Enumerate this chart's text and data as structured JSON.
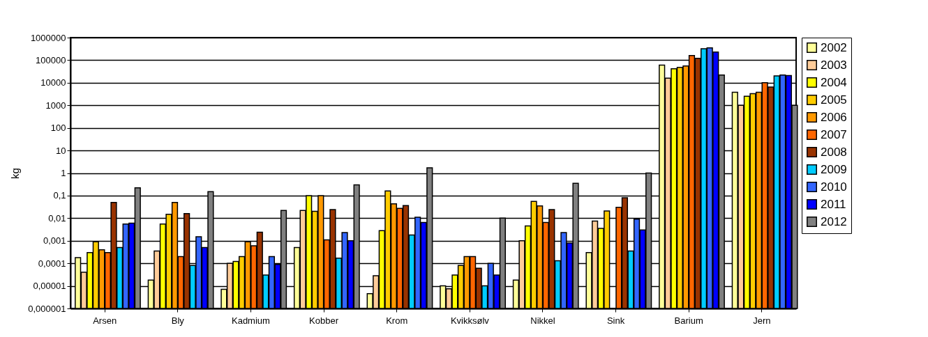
{
  "chart_data": {
    "type": "bar",
    "ylabel": "kg",
    "log": "y",
    "grid": "y",
    "legend": "right",
    "categories": [
      "Arsen",
      "Bly",
      "Kadmium",
      "Kobber",
      "Krom",
      "Kvikksølv",
      "Nikkel",
      "Sink",
      "Barium",
      "Jern"
    ],
    "ylim": [
      1e-06,
      1000000
    ],
    "yticks": [
      {
        "value": 1e-06,
        "label": "0,000001"
      },
      {
        "value": 1e-05,
        "label": "0,00001"
      },
      {
        "value": 0.0001,
        "label": "0,0001"
      },
      {
        "value": 0.001,
        "label": "0,001"
      },
      {
        "value": 0.01,
        "label": "0,01"
      },
      {
        "value": 0.1,
        "label": "0,1"
      },
      1,
      10,
      100,
      1000,
      10000,
      100000,
      1000000
    ],
    "series": [
      {
        "name": "2002",
        "color": "#ffff99",
        "values": [
          0.00018,
          1.8e-05,
          7e-06,
          0.0005,
          4.5e-06,
          1e-05,
          1.8e-05,
          0.0003,
          60000,
          3800
        ]
      },
      {
        "name": "2003",
        "color": "#ffcc99",
        "values": [
          4e-05,
          0.00035,
          0.0001,
          0.022,
          2.8e-05,
          7.5e-06,
          0.001,
          0.0075,
          16000,
          1000
        ]
      },
      {
        "name": "2004",
        "color": "#ffff00",
        "values": [
          0.0003,
          0.0055,
          0.00012,
          0.1,
          0.0028,
          3e-05,
          0.0045,
          0.0035,
          42000,
          2500
        ]
      },
      {
        "name": "2005",
        "color": "#ffcc00",
        "values": [
          0.0009,
          0.015,
          0.0002,
          0.02,
          0.16,
          8e-05,
          0.055,
          0.021,
          48000,
          3300
        ]
      },
      {
        "name": "2006",
        "color": "#ff9900",
        "values": [
          0.0004,
          0.05,
          0.0009,
          0.1,
          0.043,
          0.0002,
          0.035,
          null,
          55000,
          3800
        ]
      },
      {
        "name": "2007",
        "color": "#ff6600",
        "values": [
          0.0003,
          0.0002,
          0.0006,
          0.0011,
          0.027,
          0.0002,
          0.0065,
          0.03,
          160000,
          10000
        ]
      },
      {
        "name": "2008",
        "color": "#993300",
        "values": [
          0.05,
          0.016,
          0.0024,
          0.024,
          0.036,
          6e-05,
          0.024,
          0.08,
          120000,
          6500
        ]
      },
      {
        "name": "2009",
        "color": "#00ccff",
        "values": [
          0.0005,
          8e-05,
          3e-05,
          0.00017,
          0.0018,
          1e-05,
          0.00013,
          0.00035,
          320000,
          20000
        ]
      },
      {
        "name": "2010",
        "color": "#3366ff",
        "values": [
          0.0055,
          0.0015,
          0.0002,
          0.0023,
          0.011,
          0.0001,
          0.0023,
          0.009,
          350000,
          22000
        ]
      },
      {
        "name": "2011",
        "color": "#0000ff",
        "values": [
          0.006,
          0.0005,
          9e-05,
          0.001,
          0.0065,
          3e-05,
          0.0008,
          0.003,
          230000,
          21000
        ]
      },
      {
        "name": "2012",
        "color": "#808080",
        "values": [
          0.22,
          0.15,
          0.022,
          0.3,
          1.7,
          0.01,
          0.35,
          1,
          22000,
          1000
        ]
      }
    ]
  }
}
